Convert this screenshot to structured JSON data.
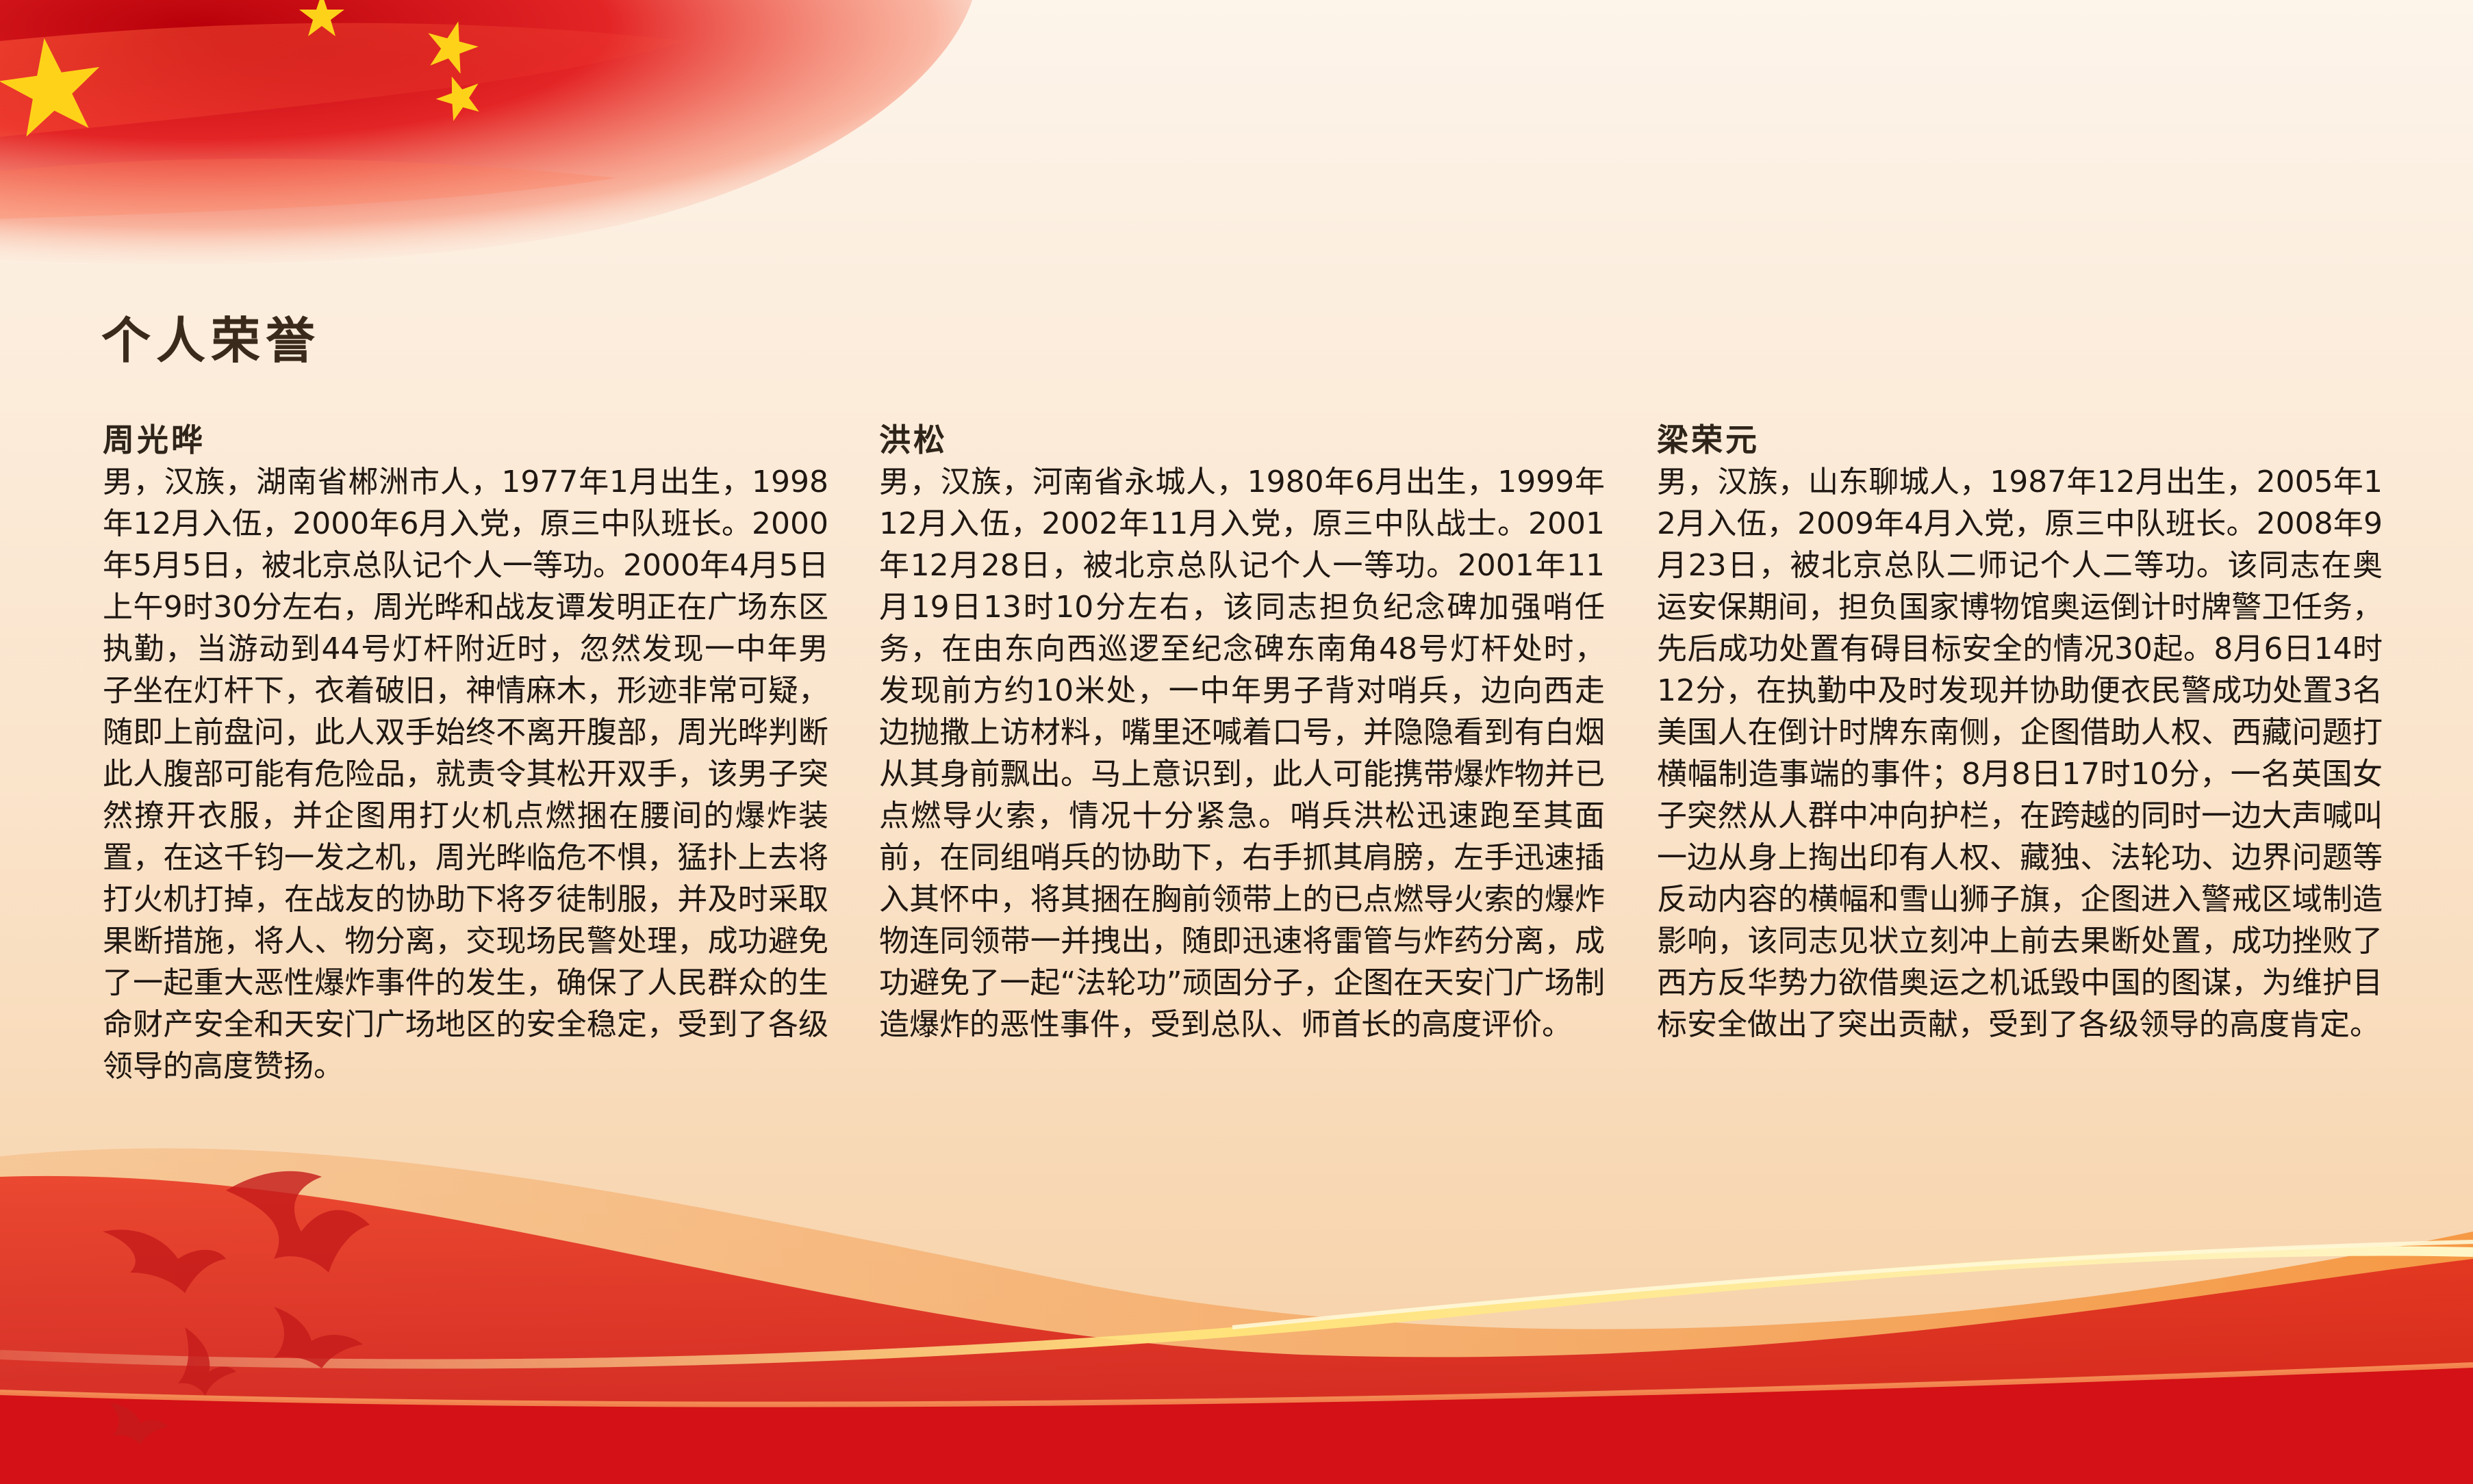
{
  "page": {
    "title": "个人荣誉"
  },
  "colors": {
    "flag_red": "#d8121a",
    "gold": "#ffd21a",
    "background": "#fdf4ea",
    "text": "#1f1712"
  },
  "decorations": {
    "flag": "flag-star-icon",
    "birds": "dove-icon"
  },
  "persons": [
    {
      "name": "周光晔",
      "bio": "男，汉族，湖南省郴洲市人，1977年1月出生，1998年12月入伍，2000年6月入党，原三中队班长。2000年5月5日，被北京总队记个人一等功。2000年4月5日上午9时30分左右，周光晔和战友谭发明正在广场东区执勤，当游动到44号灯杆附近时，忽然发现一中年男子坐在灯杆下，衣着破旧，神情麻木，形迹非常可疑，随即上前盘问，此人双手始终不离开腹部，周光晔判断此人腹部可能有危险品，就责令其松开双手，该男子突然撩开衣服，并企图用打火机点燃捆在腰间的爆炸装置，在这千钧一发之机，周光晔临危不惧，猛扑上去将打火机打掉，在战友的协助下将歹徒制服，并及时采取果断措施，将人、物分离，交现场民警处理，成功避免了一起重大恶性爆炸事件的发生，确保了人民群众的生命财产安全和天安门广场地区的安全稳定，受到了各级领导的高度赞扬。"
    },
    {
      "name": "洪松",
      "bio": "男，汉族，河南省永城人，1980年6月出生，1999年12月入伍，2002年11月入党，原三中队战士。2001年12月28日，被北京总队记个人一等功。2001年11月19日13时10分左右，该同志担负纪念碑加强哨任务，在由东向西巡逻至纪念碑东南角48号灯杆处时，发现前方约10米处，一中年男子背对哨兵，边向西走边抛撒上访材料，嘴里还喊着口号，并隐隐看到有白烟从其身前飘出。马上意识到，此人可能携带爆炸物并已点燃导火索，情况十分紧急。哨兵洪松迅速跑至其面前，在同组哨兵的协助下，右手抓其肩膀，左手迅速插入其怀中，将其捆在胸前领带上的已点燃导火索的爆炸物连同领带一并拽出，随即迅速将雷管与炸药分离，成功避免了一起“法轮功”顽固分子，企图在天安门广场制造爆炸的恶性事件，受到总队、师首长的高度评价。"
    },
    {
      "name": "梁荣元",
      "bio": "男，汉族，山东聊城人，1987年12月出生，2005年12月入伍，2009年4月入党，原三中队班长。2008年9月23日，被北京总队二师记个人二等功。该同志在奥运安保期间，担负国家博物馆奥运倒计时牌警卫任务，先后成功处置有碍目标安全的情况30起。8月6日14时12分，在执勤中及时发现并协助便衣民警成功处置3名美国人在倒计时牌东南侧，企图借助人权、西藏问题打横幅制造事端的事件；8月8日17时10分，一名英国女子突然从人群中冲向护栏，在跨越的同时一边大声喊叫一边从身上掏出印有人权、藏独、法轮功、边界问题等反动内容的横幅和雪山狮子旗，企图进入警戒区域制造影响，该同志见状立刻冲上前去果断处置，成功挫败了西方反华势力欲借奥运之机诋毁中国的图谋，为维护目标安全做出了突出贡献，受到了各级领导的高度肯定。"
    }
  ]
}
